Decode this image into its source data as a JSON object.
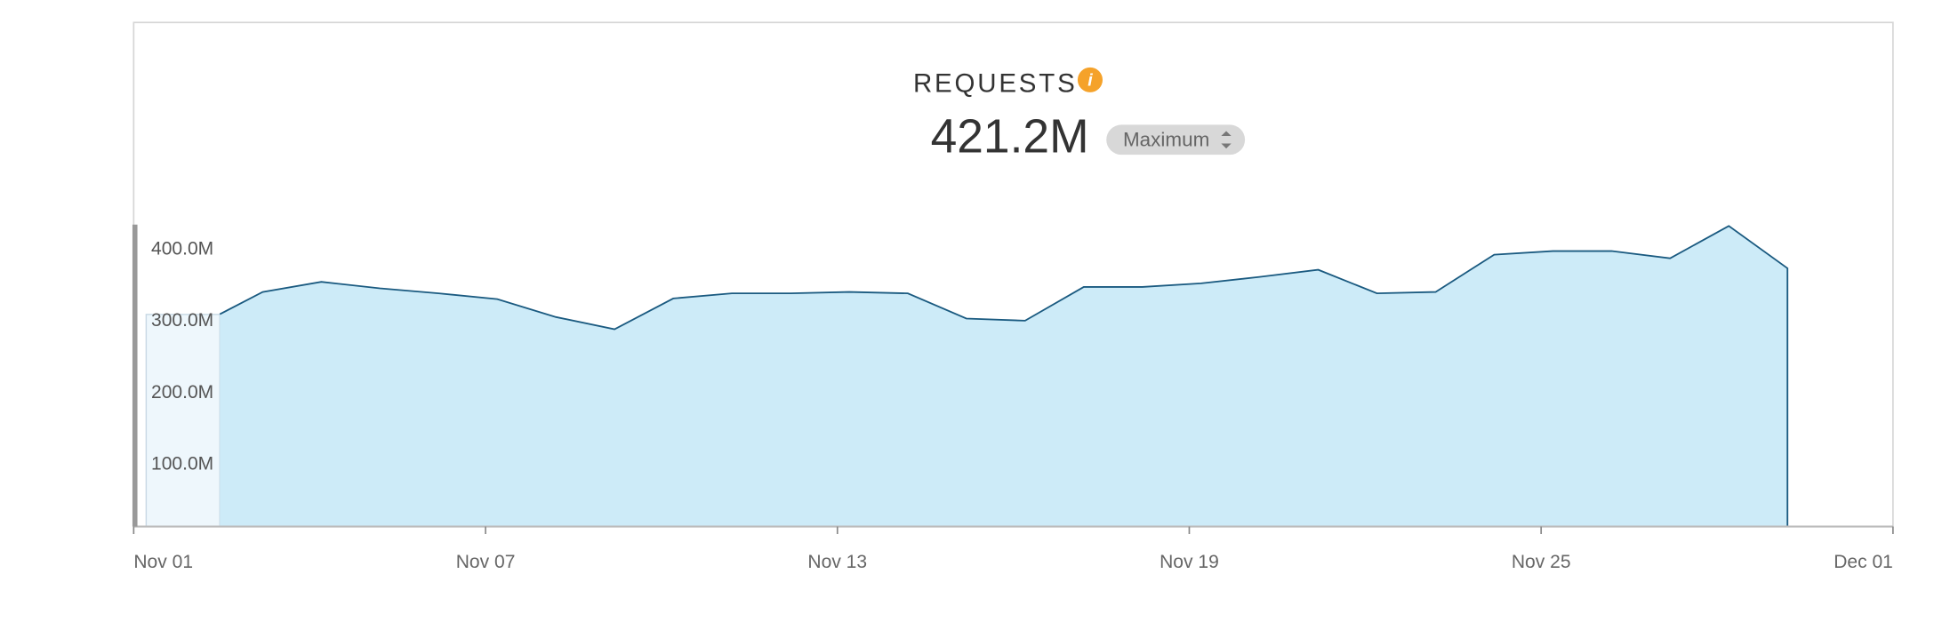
{
  "chart_data": {
    "type": "area",
    "title": "REQUESTS",
    "info_icon": "i",
    "summary_value": "421.2M",
    "aggregation": "Maximum",
    "x": [
      1.47,
      2.2,
      3.2,
      4.2,
      5.2,
      6.2,
      7.2,
      8.2,
      9.2,
      10.2,
      11.2,
      12.2,
      13.2,
      14.2,
      15.2,
      16.2,
      17.2,
      18.2,
      19.2,
      20.2,
      21.2,
      22.2,
      23.2,
      24.2,
      25.2,
      26.2,
      27.2,
      28.2
    ],
    "values": [
      296,
      327,
      341,
      332,
      325,
      317,
      292,
      275,
      318,
      325,
      325,
      327,
      325,
      290,
      287,
      334,
      334,
      339,
      348,
      358,
      325,
      327,
      379,
      384,
      384,
      374,
      419,
      360
    ],
    "color": "#cdebf8",
    "line_color": "#1a5a80",
    "xlim": [
      0,
      30
    ],
    "xticks": [
      {
        "value": 0,
        "label": "Nov 01"
      },
      {
        "value": 6,
        "label": "Nov 07"
      },
      {
        "value": 12,
        "label": "Nov 13"
      },
      {
        "value": 18,
        "label": "Nov 19"
      },
      {
        "value": 24,
        "label": "Nov 25"
      },
      {
        "value": 30,
        "label": "Dec 01"
      }
    ],
    "ylim": [
      0,
      420
    ],
    "yticks": [
      {
        "value": 100,
        "label": "100.0M"
      },
      {
        "value": 200,
        "label": "200.0M"
      },
      {
        "value": 300,
        "label": "300.0M"
      },
      {
        "value": 400,
        "label": "400.0M"
      }
    ],
    "grid": false
  }
}
